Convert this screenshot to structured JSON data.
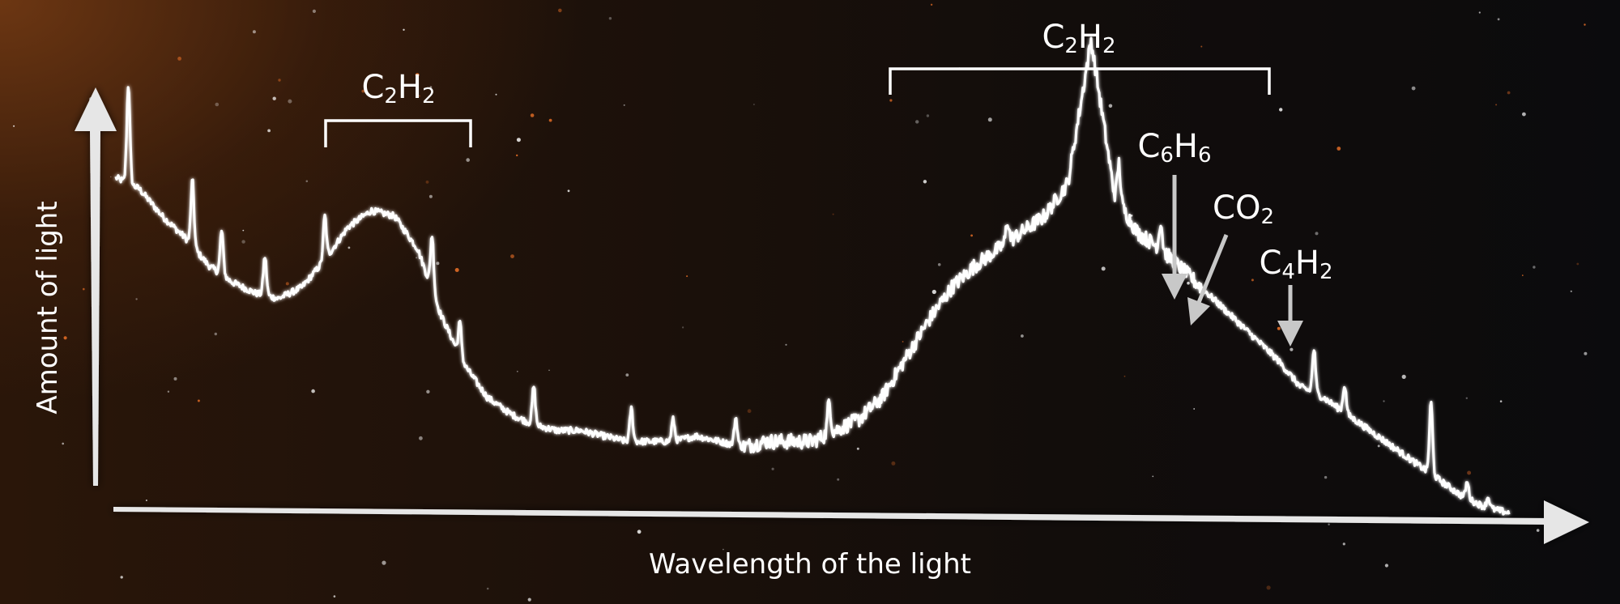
{
  "colors": {
    "spectrum": "#ffffff",
    "axis": "#e6e6e6",
    "annotation_arrow": "#c8c8c8",
    "bracket": "#ffffff",
    "background_left": "#5a2d12",
    "background_right": "#0b0b0d"
  },
  "chart_data": {
    "type": "line",
    "title": "",
    "xlabel": "Wavelength of the light",
    "ylabel": "Amount of light",
    "grid": false,
    "legend": "none",
    "series": [
      {
        "values": [
          0.73,
          0.71,
          0.66,
          0.62,
          0.57,
          0.54,
          0.52,
          0.51,
          0.53,
          0.58,
          0.64,
          0.67,
          0.66,
          0.6,
          0.48,
          0.39,
          0.33,
          0.3,
          0.28,
          0.27,
          0.27,
          0.26,
          0.25,
          0.25,
          0.25,
          0.26,
          0.25,
          0.24,
          0.25,
          0.25,
          0.25,
          0.27,
          0.29,
          0.33,
          0.4,
          0.47,
          0.53,
          0.57,
          0.6,
          0.63,
          0.66,
          0.72,
          0.98,
          0.7,
          0.63,
          0.6,
          0.56,
          0.52,
          0.48,
          0.44,
          0.4,
          0.35,
          0.33,
          0.3,
          0.27,
          0.24,
          0.21,
          0.18,
          0.15,
          0.13,
          0.12
        ]
      }
    ],
    "annotations": [
      {
        "type": "bracket",
        "label_main": "C",
        "label_sub1": "2",
        "label_mid": "H",
        "label_sub2": "2"
      },
      {
        "type": "bracket",
        "label_main": "C",
        "label_sub1": "2",
        "label_mid": "H",
        "label_sub2": "2"
      },
      {
        "type": "arrow",
        "label_main": "C",
        "label_sub1": "6",
        "label_mid": "H",
        "label_sub2": "6"
      },
      {
        "type": "arrow",
        "label_main": "CO",
        "label_sub1": "2",
        "label_mid": "",
        "label_sub2": ""
      },
      {
        "type": "arrow",
        "label_main": "C",
        "label_sub1": "4",
        "label_mid": "H",
        "label_sub2": "2"
      }
    ]
  }
}
